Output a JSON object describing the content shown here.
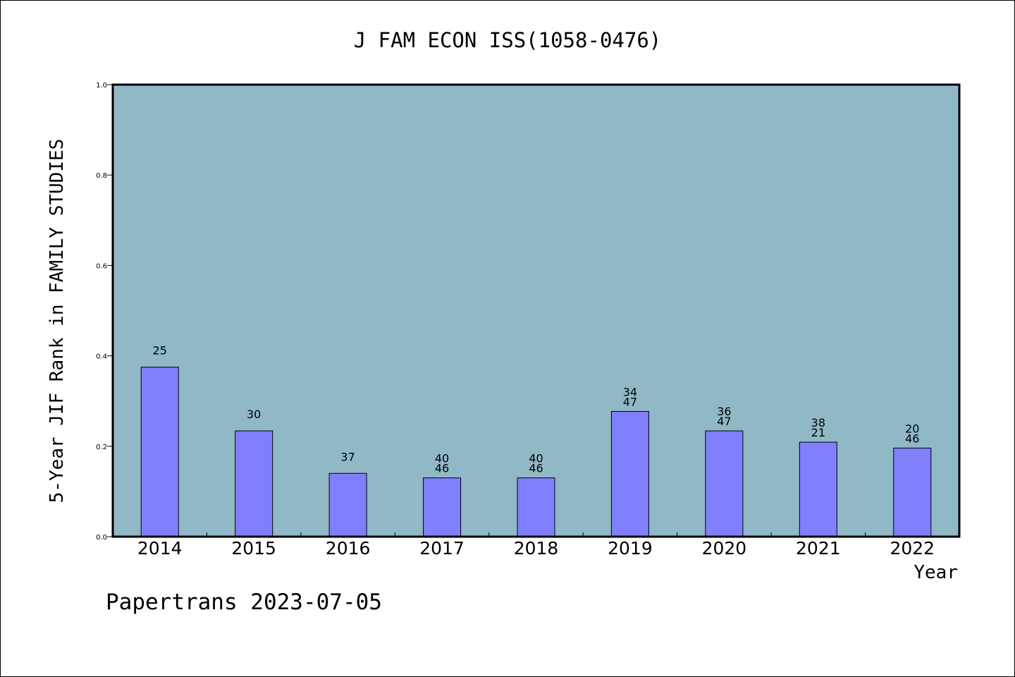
{
  "chart_data": {
    "type": "bar",
    "title": "J FAM ECON ISS(1058-0476)",
    "xlabel": "Year",
    "ylabel": "5-Year JIF Rank in FAMILY STUDIES",
    "ylim": [
      0,
      1.0
    ],
    "yticks": [
      "0.0",
      "0.2",
      "0.4",
      "0.6",
      "0.8",
      "1.0"
    ],
    "categories": [
      "2014",
      "2015",
      "2016",
      "2017",
      "2018",
      "2019",
      "2020",
      "2021",
      "2022"
    ],
    "values": [
      0.375,
      0.234,
      0.14,
      0.13,
      0.13,
      0.277,
      0.234,
      0.209,
      0.196
    ],
    "bar_labels": [
      [
        "25"
      ],
      [
        "30"
      ],
      [
        "37"
      ],
      [
        "40",
        "46"
      ],
      [
        "40",
        "46"
      ],
      [
        "34",
        "47"
      ],
      [
        "36",
        "47"
      ],
      [
        "38",
        "21"
      ],
      [
        "20",
        "46"
      ]
    ],
    "grid": false,
    "colors": {
      "plot_background": "#90b8c6",
      "bar_fill": "#8080ff",
      "bar_stroke": "#000000"
    }
  },
  "footer": {
    "credit": "Papertrans 2023-07-05"
  }
}
